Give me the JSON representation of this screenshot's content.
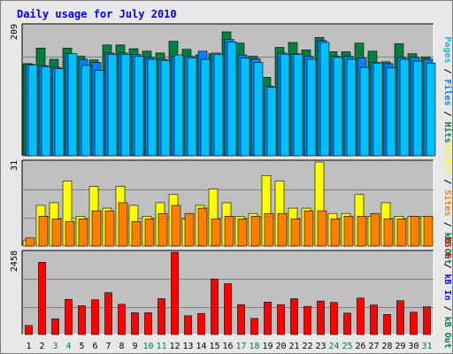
{
  "title": "Daily usage for July 2010",
  "colors": {
    "frame": "#808080",
    "background": "#e8e8e8",
    "plot_bg": "#c0c0c0",
    "title": "#0000ff",
    "hits": "#008040",
    "files": "#0080ff",
    "pages": "#00c0ff",
    "visits": "#ffff00",
    "sites": "#ff8000",
    "kbin": "#0000ff",
    "kbout": "#008040",
    "kbf": "#ff0000",
    "weekend_label": "#008040",
    "weekday_label": "#000000"
  },
  "chart_data": [
    {
      "type": "bar",
      "title": "Daily usage for July 2010",
      "ylabel_parts": [
        {
          "text": "Pages",
          "color": "#00c0ff"
        },
        {
          "text": " / ",
          "color": "#000000"
        },
        {
          "text": "Files",
          "color": "#0080ff"
        },
        {
          "text": " / ",
          "color": "#000000"
        },
        {
          "text": "Hits",
          "color": "#008040"
        }
      ],
      "ymax_label": "209",
      "ylim": [
        0,
        209
      ],
      "categories": [
        "1",
        "2",
        "3",
        "4",
        "5",
        "6",
        "7",
        "8",
        "9",
        "10",
        "11",
        "12",
        "13",
        "14",
        "15",
        "16",
        "17",
        "18",
        "19",
        "20",
        "21",
        "22",
        "23",
        "24",
        "25",
        "26",
        "27",
        "28",
        "29",
        "30",
        "31"
      ],
      "weekend_days": [
        "3",
        "4",
        "10",
        "11",
        "17",
        "18",
        "24",
        "25",
        "31"
      ],
      "series": [
        {
          "name": "Hits",
          "color": "#008040",
          "values": [
            148,
            173,
            155,
            173,
            160,
            154,
            178,
            178,
            172,
            168,
            165,
            184,
            171,
            162,
            164,
            199,
            181,
            160,
            126,
            174,
            182,
            170,
            190,
            167,
            167,
            181,
            168,
            151,
            180,
            164,
            159
          ]
        },
        {
          "name": "Files",
          "color": "#0080ff",
          "values": [
            147,
            145,
            142,
            164,
            155,
            150,
            165,
            165,
            163,
            158,
            155,
            160,
            160,
            168,
            165,
            187,
            162,
            156,
            112,
            165,
            164,
            160,
            185,
            160,
            160,
            157,
            150,
            148,
            158,
            158,
            155
          ]
        },
        {
          "name": "Pages",
          "color": "#00c0ff",
          "values": [
            146,
            143,
            140,
            164,
            145,
            137,
            163,
            163,
            160,
            155,
            153,
            162,
            157,
            155,
            163,
            183,
            157,
            150,
            110,
            163,
            163,
            155,
            182,
            158,
            155,
            142,
            149,
            141,
            155,
            152,
            149
          ]
        }
      ]
    },
    {
      "type": "bar",
      "ylabel_parts": [
        {
          "text": "Visits",
          "color": "#ffff00"
        },
        {
          "text": " / ",
          "color": "#000000"
        },
        {
          "text": "Sites",
          "color": "#ff8000"
        },
        {
          "text": " / ",
          "color": "#000000"
        },
        {
          "text": "kB Out",
          "color": "#008040"
        }
      ],
      "ymax_label": "31",
      "ylim": [
        0,
        31
      ],
      "categories": [
        "1",
        "2",
        "3",
        "4",
        "5",
        "6",
        "7",
        "8",
        "9",
        "10",
        "11",
        "12",
        "13",
        "14",
        "15",
        "16",
        "17",
        "18",
        "19",
        "20",
        "21",
        "22",
        "23",
        "24",
        "25",
        "26",
        "27",
        "28",
        "29",
        "30",
        "31"
      ],
      "series": [
        {
          "name": "Visits",
          "color": "#ffff00",
          "values": [
            2,
            15,
            16,
            24,
            11,
            22,
            14,
            22,
            15,
            11,
            16,
            19,
            10,
            15,
            21,
            16,
            11,
            12,
            26,
            24,
            14,
            14,
            31,
            12,
            12,
            19,
            11,
            16,
            11,
            11,
            11
          ]
        },
        {
          "name": "Sites",
          "color": "#ff8000",
          "values": [
            3,
            11,
            10,
            9,
            10,
            13,
            13,
            16,
            9,
            10,
            12,
            15,
            12,
            14,
            10,
            11,
            10,
            11,
            12,
            12,
            10,
            13,
            13,
            10,
            11,
            11,
            12,
            10,
            10,
            11,
            11
          ]
        }
      ]
    },
    {
      "type": "bar",
      "ylabel_parts": [
        {
          "text": "kB F",
          "color": "#ff0000"
        },
        {
          "text": " / ",
          "color": "#000000"
        },
        {
          "text": "kB In",
          "color": "#0000ff"
        },
        {
          "text": " / ",
          "color": "#000000"
        },
        {
          "text": "kB Out",
          "color": "#008040"
        }
      ],
      "ymax_label": "2458",
      "ylim": [
        0,
        2458
      ],
      "categories": [
        "1",
        "2",
        "3",
        "4",
        "5",
        "6",
        "7",
        "8",
        "9",
        "10",
        "11",
        "12",
        "13",
        "14",
        "15",
        "16",
        "17",
        "18",
        "19",
        "20",
        "21",
        "22",
        "23",
        "24",
        "25",
        "26",
        "27",
        "28",
        "29",
        "30",
        "31"
      ],
      "series": [
        {
          "name": "kB F",
          "color": "#ff0000",
          "values": [
            270,
            2160,
            470,
            1050,
            860,
            1040,
            1250,
            900,
            650,
            650,
            1070,
            2470,
            560,
            630,
            1660,
            1520,
            890,
            480,
            970,
            890,
            1070,
            840,
            1000,
            960,
            640,
            1090,
            880,
            600,
            1010,
            670,
            830
          ]
        }
      ]
    }
  ]
}
